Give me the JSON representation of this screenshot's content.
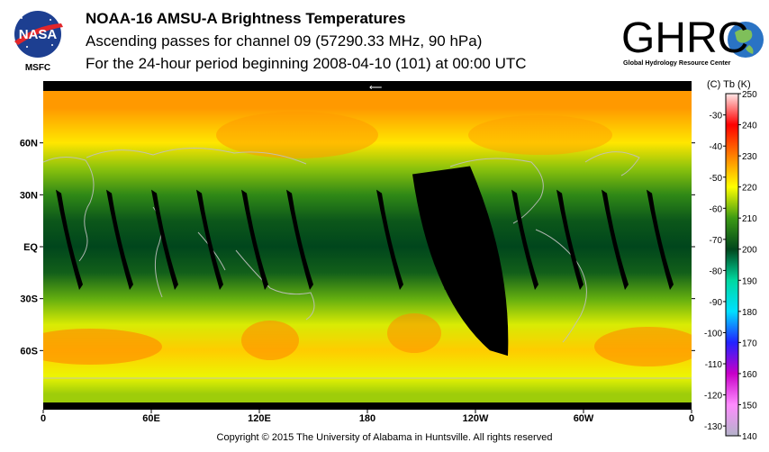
{
  "header": {
    "title": "NOAA-16 AMSU-A Brightness Temperatures",
    "subtitle": "Ascending passes for channel 09 (57290.33 MHz, 90 hPa)",
    "period": "For the 24-hour period beginning 2008-04-10 (101) at 00:00 UTC"
  },
  "logos": {
    "nasa": {
      "wordmark": "NASA",
      "caption": "MSFC"
    },
    "ghrc": {
      "wordmark": "GHRC",
      "caption": "Global Hydrology Resource Center"
    }
  },
  "footer": {
    "copyright": "Copyright © 2015 The University of Alabama in Huntsville.  All rights reserved"
  },
  "colorbar": {
    "units_label": "(C)  Tb  (K)",
    "kelvin_ticks": [
      "250",
      "240",
      "230",
      "220",
      "210",
      "200",
      "190",
      "180",
      "170",
      "160",
      "150",
      "140"
    ],
    "celsius_ticks": [
      "-30",
      "-40",
      "-50",
      "-60",
      "-70",
      "-80",
      "-90",
      "-100",
      "-110",
      "-120",
      "-130"
    ]
  },
  "chart_data": {
    "type": "heatmap",
    "title": "NOAA-16 AMSU-A Brightness Temperatures",
    "variable": "Tb",
    "units": "K",
    "colorbar_range_K": [
      140,
      250
    ],
    "colorbar_range_C": [
      -130,
      -30
    ],
    "x_tick_labels": [
      "0",
      "60E",
      "120E",
      "180",
      "120W",
      "60W",
      "0"
    ],
    "y_tick_labels": [
      "60N",
      "30N",
      "EQ",
      "30S",
      "60S"
    ],
    "xlim_lon": [
      0,
      360
    ],
    "ylim_lat": [
      -90,
      90
    ],
    "zonal_profile": [
      {
        "lat": 80,
        "tb": 228
      },
      {
        "lat": 60,
        "tb": 222
      },
      {
        "lat": 45,
        "tb": 214
      },
      {
        "lat": 30,
        "tb": 208
      },
      {
        "lat": 15,
        "tb": 202
      },
      {
        "lat": 0,
        "tb": 200
      },
      {
        "lat": -15,
        "tb": 203
      },
      {
        "lat": -30,
        "tb": 212
      },
      {
        "lat": -45,
        "tb": 218
      },
      {
        "lat": -60,
        "tb": 224
      },
      {
        "lat": -75,
        "tb": 219
      },
      {
        "lat": -85,
        "tb": 215
      }
    ],
    "orbit_gaps_lon": [
      9,
      37,
      62,
      87,
      112,
      137,
      187,
      212,
      237,
      262,
      287,
      312,
      337
    ],
    "missing_swath": {
      "lat_top": 45,
      "lat_bottom": -63,
      "lon_top": [
        205,
        237
      ],
      "lon_bottom": [
        252,
        258
      ]
    },
    "colormap": [
      {
        "tb": 140,
        "color": "#b3b3c9"
      },
      {
        "tb": 150,
        "color": "#ff8cff"
      },
      {
        "tb": 160,
        "color": "#c800c8"
      },
      {
        "tb": 170,
        "color": "#2222ff"
      },
      {
        "tb": 180,
        "color": "#00e0ff"
      },
      {
        "tb": 190,
        "color": "#00d8a0"
      },
      {
        "tb": 200,
        "color": "#00461c"
      },
      {
        "tb": 210,
        "color": "#3c9a14"
      },
      {
        "tb": 220,
        "color": "#ffff00"
      },
      {
        "tb": 230,
        "color": "#ff8000"
      },
      {
        "tb": 240,
        "color": "#ff0000"
      },
      {
        "tb": 250,
        "color": "#ffe8e8"
      }
    ]
  }
}
